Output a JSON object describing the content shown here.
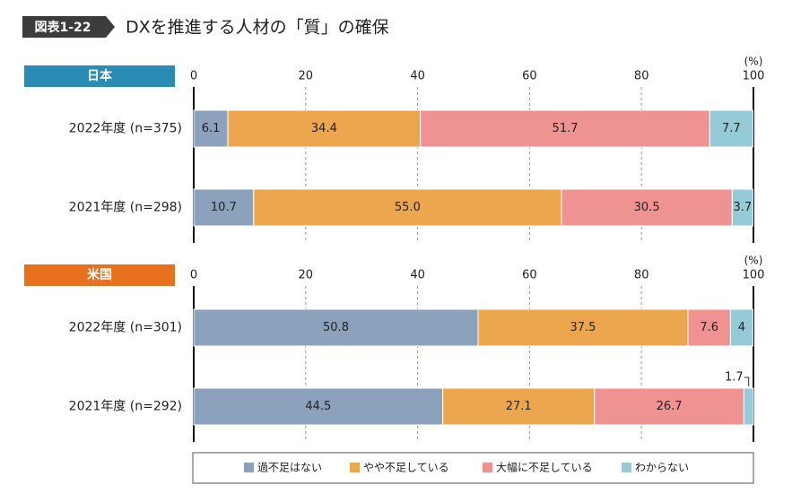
{
  "chart_data": {
    "type": "stacked-barh",
    "figure_label": "図表1-22",
    "title": "DXを推進する人材の「質」の確保",
    "panels": [
      "日本",
      "米国"
    ],
    "panel_colors": [
      "#2a8bb5",
      "#e8711e"
    ],
    "unit": "(%)",
    "categories": [
      "2022年度 (n=375)",
      "2021年度 (n=298)",
      "2022年度 (n=301)",
      "2021年度 (n=292)"
    ],
    "series": [
      {
        "name": "過不足はない",
        "color": "#8ba1bc",
        "values": [
          6.1,
          10.7,
          50.8,
          44.5
        ]
      },
      {
        "name": "やや不足している",
        "color": "#eba64e",
        "values": [
          34.4,
          55.0,
          37.5,
          27.1
        ],
        "value_labels": [
          "34.4",
          "55.0",
          "37.5",
          "27.1"
        ]
      },
      {
        "name": "大幅に不足している",
        "color": "#ef9292",
        "values": [
          51.7,
          30.5,
          7.6,
          26.7
        ]
      },
      {
        "name": "わからない",
        "color": "#95cbd7",
        "values": [
          7.7,
          3.7,
          4.0,
          1.7
        ]
      }
    ],
    "xlim": [
      0,
      100
    ],
    "xticks": [
      0,
      20,
      40,
      60,
      80,
      100
    ],
    "grid": true
  }
}
